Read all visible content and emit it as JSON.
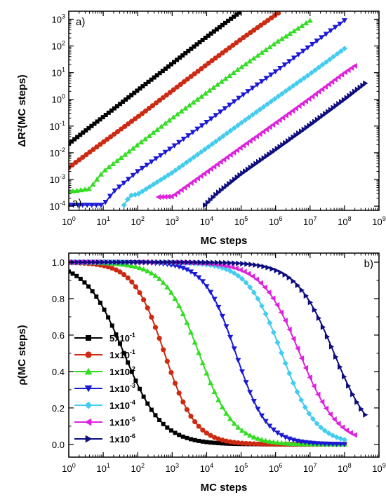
{
  "legend": [
    {
      "label": "5x10",
      "exp": "-1",
      "color": "#000000",
      "marker": "square"
    },
    {
      "label": "1x10",
      "exp": "-1",
      "color": "#cc2a12",
      "marker": "circle"
    },
    {
      "label": "1x10",
      "exp": "-2",
      "color": "#33dd22",
      "marker": "triangle-up"
    },
    {
      "label": "1x10",
      "exp": "-3",
      "color": "#1a1ad6",
      "marker": "triangle-down"
    },
    {
      "label": "1x10",
      "exp": "-4",
      "color": "#44ccee",
      "marker": "diamond"
    },
    {
      "label": "1x10",
      "exp": "-5",
      "color": "#dd22dd",
      "marker": "triangle-left"
    },
    {
      "label": "1x10",
      "exp": "-6",
      "color": "#0d0d80",
      "marker": "triangle-right"
    }
  ],
  "chart_data": [
    {
      "type": "line",
      "panel_label": "a)",
      "extra_label": "a)",
      "xlabel": "MC steps",
      "ylabel": "ΔR²(MC steps)",
      "xscale": "log",
      "yscale": "log",
      "xlim": [
        1,
        1000000000.0
      ],
      "ylim": [
        7e-05,
        2000
      ],
      "x_ticks": [
        1,
        10,
        100,
        1000,
        10000,
        100000,
        1000000,
        10000000,
        100000000,
        1000000000
      ],
      "x_tick_labels": [
        "10",
        "10",
        "10",
        "10",
        "10",
        "10",
        "10",
        "10",
        "10",
        "10"
      ],
      "x_tick_exps": [
        "0",
        "1",
        "2",
        "3",
        "4",
        "5",
        "6",
        "7",
        "8",
        "9"
      ],
      "y_ticks": [
        0.0001,
        0.001,
        0.01,
        0.1,
        1,
        10,
        100,
        1000
      ],
      "y_tick_labels": [
        "10",
        "10",
        "10",
        "10",
        "10",
        "10",
        "10",
        "10"
      ],
      "y_tick_exps": [
        "-4",
        "-3",
        "-2",
        "-1",
        "0",
        "1",
        "2",
        "3"
      ],
      "series": [
        {
          "x_range": [
            1,
            90000
          ],
          "y_points": [
            [
              1,
              0.022
            ],
            [
              10,
              0.22
            ],
            [
              100,
              2.2
            ],
            [
              1000,
              22
            ],
            [
              10000,
              220
            ],
            [
              90000,
              1800
            ]
          ]
        },
        {
          "x_range": [
            1,
            1200000
          ],
          "y_points": [
            [
              1,
              0.0028
            ],
            [
              10,
              0.025
            ],
            [
              100,
              0.22
            ],
            [
              1000,
              2.1
            ],
            [
              10000,
              20
            ],
            [
              100000,
              180
            ],
            [
              1200000,
              1700
            ]
          ]
        },
        {
          "x_range": [
            1,
            10000000
          ],
          "y_points": [
            [
              1,
              0.00035
            ],
            [
              4,
              0.00045
            ],
            [
              10,
              0.002
            ],
            [
              100,
              0.02
            ],
            [
              1000,
              0.2
            ],
            [
              10000,
              1.8
            ],
            [
              100000,
              16
            ],
            [
              1000000,
              130
            ],
            [
              10000000,
              900
            ]
          ]
        },
        {
          "x_range": [
            1,
            100000000
          ],
          "y_points": [
            [
              1,
              0.00011
            ],
            [
              10,
              0.00011
            ],
            [
              20,
              0.00035
            ],
            [
              100,
              0.002
            ],
            [
              1000,
              0.016
            ],
            [
              10000,
              0.14
            ],
            [
              100000,
              1.3
            ],
            [
              1000000,
              11
            ],
            [
              10000000,
              100
            ],
            [
              100000000,
              900
            ]
          ]
        },
        {
          "x_range": [
            40,
            100000000
          ],
          "y_points": [
            [
              40,
              0.00011
            ],
            [
              60,
              0.00025
            ],
            [
              100,
              0.00028
            ],
            [
              1000,
              0.0018
            ],
            [
              10000,
              0.015
            ],
            [
              100000,
              0.13
            ],
            [
              1000000,
              1.1
            ],
            [
              10000000,
              9
            ],
            [
              100000000,
              80
            ]
          ]
        },
        {
          "x_range": [
            400,
            200000000
          ],
          "y_points": [
            [
              400,
              0.00022
            ],
            [
              1000,
              0.00023
            ],
            [
              10000,
              0.0019
            ],
            [
              100000,
              0.016
            ],
            [
              1000000,
              0.13
            ],
            [
              10000000,
              1.1
            ],
            [
              100000000,
              10
            ],
            [
              200000000,
              18
            ]
          ]
        },
        {
          "x_range": [
            9000,
            400000000
          ],
          "y_points": [
            [
              9000,
              0.00011
            ],
            [
              20000,
              0.0003
            ],
            [
              100000,
              0.0016
            ],
            [
              1000000,
              0.013
            ],
            [
              10000000,
              0.11
            ],
            [
              100000000,
              1.0
            ],
            [
              400000000,
              4
            ]
          ]
        }
      ]
    },
    {
      "type": "line",
      "panel_label": "b)",
      "xlabel": "MC steps",
      "ylabel": "ρ(MC steps)",
      "xscale": "log",
      "yscale": "linear",
      "xlim": [
        1,
        1000000000.0
      ],
      "ylim": [
        -0.07,
        1.05
      ],
      "x_ticks": [
        1,
        10,
        100,
        1000,
        10000,
        100000,
        1000000,
        10000000,
        100000000,
        1000000000
      ],
      "x_tick_labels": [
        "10",
        "10",
        "10",
        "10",
        "10",
        "10",
        "10",
        "10",
        "10",
        "10"
      ],
      "x_tick_exps": [
        "0",
        "1",
        "2",
        "3",
        "4",
        "5",
        "6",
        "7",
        "8",
        "9"
      ],
      "y_ticks": [
        0.0,
        0.2,
        0.4,
        0.6,
        0.8,
        1.0
      ],
      "y_tick_labels": [
        "0.0",
        "0.2",
        "0.4",
        "0.6",
        "0.8",
        "1.0"
      ],
      "series": [
        {
          "x_range": [
            1,
            100000000
          ],
          "midpoint": 40,
          "width": 0.55
        },
        {
          "x_range": [
            1,
            100000000
          ],
          "midpoint": 600,
          "width": 0.45
        },
        {
          "x_range": [
            1,
            100000000
          ],
          "midpoint": 6000,
          "width": 0.5
        },
        {
          "x_range": [
            1,
            100000000
          ],
          "midpoint": 70000,
          "width": 0.45
        },
        {
          "x_range": [
            1,
            100000000
          ],
          "midpoint": 1500000,
          "width": 0.5
        },
        {
          "x_range": [
            1,
            200000000
          ],
          "midpoint": 5000000,
          "width": 0.55
        },
        {
          "x_range": [
            1,
            400000000
          ],
          "midpoint": 50000000,
          "width": 0.55
        }
      ]
    }
  ]
}
